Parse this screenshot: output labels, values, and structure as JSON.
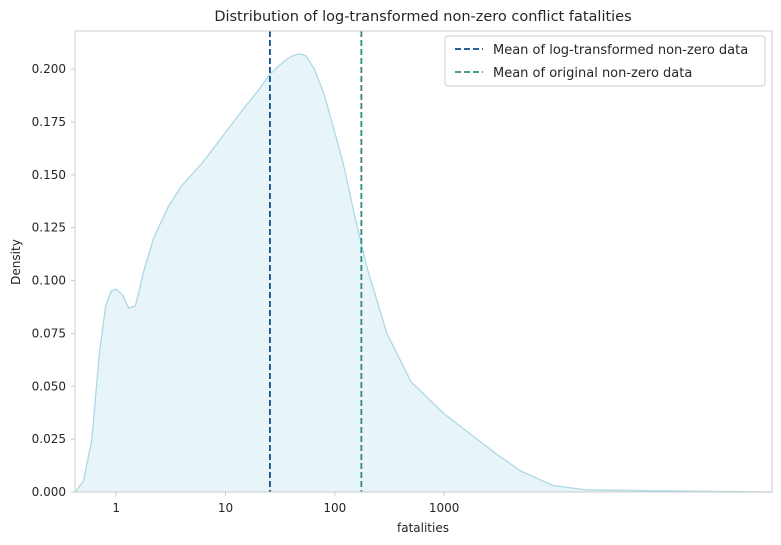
{
  "chart_data": {
    "type": "area",
    "title": "Distribution of log-transformed non-zero conflict fatalities",
    "xlabel": "fatalities",
    "ylabel": "Density",
    "x_scale": "log",
    "xlim": [
      0.42,
      1000000
    ],
    "ylim": [
      0,
      0.218
    ],
    "x_tick_values": [
      1,
      10,
      100,
      1000
    ],
    "x_tick_labels": [
      "1",
      "10",
      "100",
      "1000"
    ],
    "y_tick_values": [
      0,
      0.025,
      0.05,
      0.075,
      0.1,
      0.125,
      0.15,
      0.175,
      0.2
    ],
    "y_tick_labels": [
      "0.000",
      "0.025",
      "0.050",
      "0.075",
      "0.100",
      "0.125",
      "0.150",
      "0.175",
      "0.200"
    ],
    "grid": false,
    "legend_position": "top-right",
    "colors": {
      "curve": "#add8e6",
      "fill": "#e8f5f8",
      "mean_log": "#0b4f8a",
      "mean_original": "#2e8b7f"
    },
    "series": [
      {
        "x": [
          0.42,
          0.5,
          0.6,
          0.7,
          0.8,
          0.9,
          1.0,
          1.15,
          1.3,
          1.5,
          1.8,
          2.2,
          3.0,
          4.0,
          6.0,
          10,
          15,
          20,
          25,
          30,
          35,
          40,
          45,
          50,
          55,
          65,
          80,
          100,
          120,
          150,
          200,
          300,
          500,
          1000,
          2000,
          3000,
          5000,
          10000,
          20000,
          100000,
          1000000
        ],
        "y": [
          0.0,
          0.005,
          0.025,
          0.065,
          0.088,
          0.095,
          0.096,
          0.093,
          0.087,
          0.088,
          0.105,
          0.12,
          0.135,
          0.145,
          0.155,
          0.17,
          0.182,
          0.19,
          0.197,
          0.201,
          0.204,
          0.206,
          0.207,
          0.207,
          0.206,
          0.2,
          0.188,
          0.17,
          0.155,
          0.132,
          0.105,
          0.075,
          0.052,
          0.037,
          0.025,
          0.018,
          0.01,
          0.003,
          0.001,
          0.0005,
          0.0
        ]
      }
    ],
    "mean_lines": [
      {
        "name": "Mean of log-transformed non-zero data",
        "x": 25.5
      },
      {
        "name": "Mean of original non-zero data",
        "x": 175
      }
    ]
  }
}
